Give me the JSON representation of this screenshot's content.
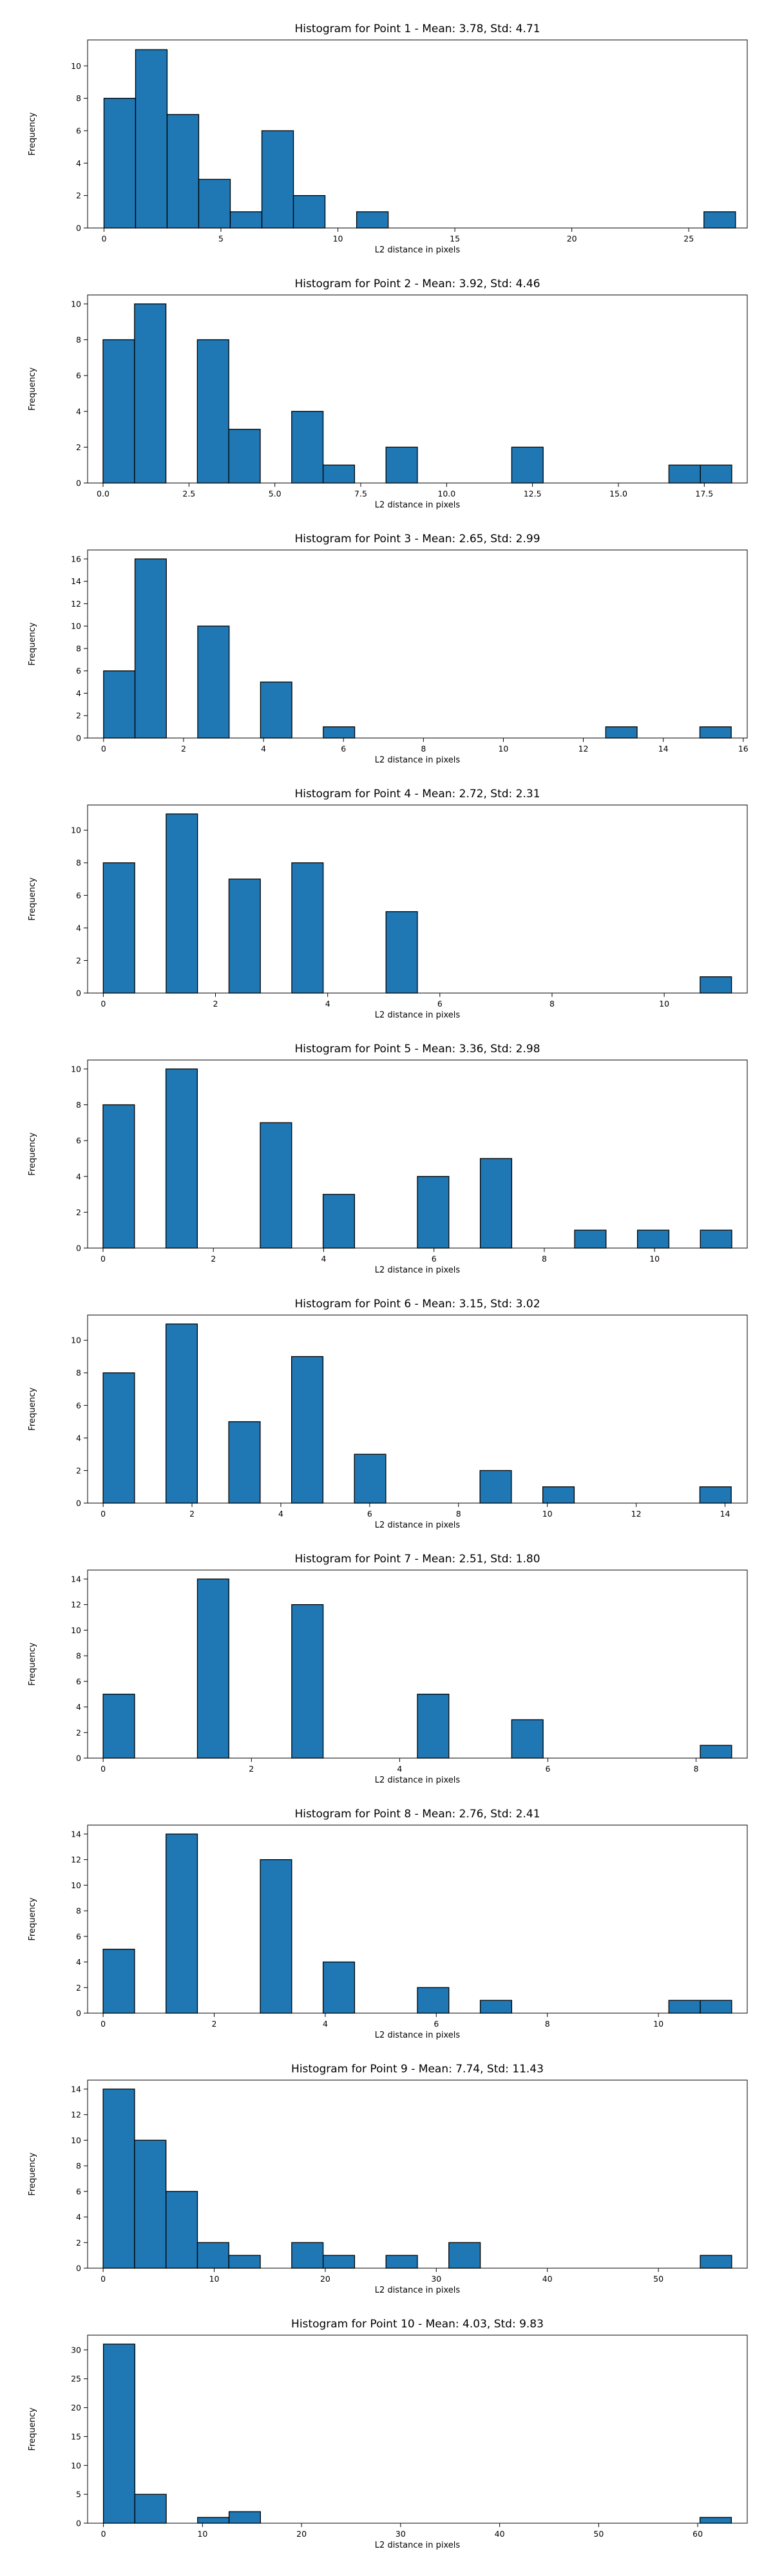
{
  "chart_data": [
    {
      "type": "bar",
      "title": "Histogram for Point 1 - Mean: 3.78, Std: 4.71",
      "xlabel": "L2 distance in pixels",
      "ylabel": "Frequency",
      "bin_start": 0,
      "bin_width": 1.35,
      "counts": [
        8,
        11,
        7,
        3,
        1,
        6,
        2,
        0,
        1,
        0,
        0,
        0,
        0,
        0,
        0,
        0,
        0,
        0,
        0,
        1
      ],
      "xlim": [
        -0.7,
        27.5
      ],
      "ylim": [
        0,
        11.6
      ],
      "xticks": [
        0,
        5,
        10,
        15,
        20,
        25
      ],
      "xtick_labels": [
        "0",
        "5",
        "10",
        "15",
        "20",
        "25"
      ],
      "yticks": [
        0,
        2,
        4,
        6,
        8,
        10
      ],
      "ytick_labels": [
        "0",
        "2",
        "4",
        "6",
        "8",
        "10"
      ],
      "bar_color": "#1f77b4",
      "edge_color": "#000000"
    },
    {
      "type": "bar",
      "title": "Histogram for Point 2 - Mean: 3.92, Std: 4.46",
      "xlabel": "L2 distance in pixels",
      "ylabel": "Frequency",
      "bin_start": 0,
      "bin_width": 0.915,
      "counts": [
        8,
        10,
        0,
        8,
        3,
        0,
        4,
        1,
        0,
        2,
        0,
        0,
        0,
        2,
        0,
        0,
        0,
        0,
        1,
        1
      ],
      "xlim": [
        -0.45,
        18.75
      ],
      "ylim": [
        0,
        10.5
      ],
      "xticks": [
        0,
        2.5,
        5,
        7.5,
        10,
        12.5,
        15,
        17.5
      ],
      "xtick_labels": [
        "0.0",
        "2.5",
        "5.0",
        "7.5",
        "10.0",
        "12.5",
        "15.0",
        "17.5"
      ],
      "yticks": [
        0,
        2,
        4,
        6,
        8,
        10
      ],
      "ytick_labels": [
        "0",
        "2",
        "4",
        "6",
        "8",
        "10"
      ],
      "bar_color": "#1f77b4",
      "edge_color": "#000000"
    },
    {
      "type": "bar",
      "title": "Histogram for Point 3 - Mean: 2.65, Std: 2.99",
      "xlabel": "L2 distance in pixels",
      "ylabel": "Frequency",
      "bin_start": 0,
      "bin_width": 0.785,
      "counts": [
        6,
        16,
        0,
        10,
        0,
        5,
        0,
        1,
        0,
        0,
        0,
        0,
        0,
        0,
        0,
        0,
        1,
        0,
        0,
        1
      ],
      "xlim": [
        -0.4,
        16.1
      ],
      "ylim": [
        0,
        16.8
      ],
      "xticks": [
        0,
        2,
        4,
        6,
        8,
        10,
        12,
        14,
        16
      ],
      "xtick_labels": [
        "0",
        "2",
        "4",
        "6",
        "8",
        "10",
        "12",
        "14",
        "16"
      ],
      "yticks": [
        0,
        2,
        4,
        6,
        8,
        10,
        12,
        14,
        16
      ],
      "ytick_labels": [
        "0",
        "2",
        "4",
        "6",
        "8",
        "10",
        "12",
        "14",
        "16"
      ],
      "bar_color": "#1f77b4",
      "edge_color": "#000000"
    },
    {
      "type": "bar",
      "title": "Histogram for Point 4 - Mean: 2.72, Std: 2.31",
      "xlabel": "L2 distance in pixels",
      "ylabel": "Frequency",
      "bin_start": 0,
      "bin_width": 0.56,
      "counts": [
        8,
        0,
        11,
        0,
        7,
        0,
        8,
        0,
        0,
        5,
        0,
        0,
        0,
        0,
        0,
        0,
        0,
        0,
        0,
        1
      ],
      "xlim": [
        -0.28,
        11.48
      ],
      "ylim": [
        0,
        11.55
      ],
      "xticks": [
        0,
        2,
        4,
        6,
        8,
        10
      ],
      "xtick_labels": [
        "0",
        "2",
        "4",
        "6",
        "8",
        "10"
      ],
      "yticks": [
        0,
        2,
        4,
        6,
        8,
        10
      ],
      "ytick_labels": [
        "0",
        "2",
        "4",
        "6",
        "8",
        "10"
      ],
      "bar_color": "#1f77b4",
      "edge_color": "#000000"
    },
    {
      "type": "bar",
      "title": "Histogram for Point 5 - Mean: 3.36, Std: 2.98",
      "xlabel": "L2 distance in pixels",
      "ylabel": "Frequency",
      "bin_start": 0,
      "bin_width": 0.57,
      "counts": [
        8,
        0,
        10,
        0,
        0,
        7,
        0,
        3,
        0,
        0,
        4,
        0,
        5,
        0,
        0,
        1,
        0,
        1,
        0,
        1
      ],
      "xlim": [
        -0.28,
        11.68
      ],
      "ylim": [
        0,
        10.5
      ],
      "xticks": [
        0,
        2,
        4,
        6,
        8,
        10
      ],
      "xtick_labels": [
        "0",
        "2",
        "4",
        "6",
        "8",
        "10"
      ],
      "yticks": [
        0,
        2,
        4,
        6,
        8,
        10
      ],
      "ytick_labels": [
        "0",
        "2",
        "4",
        "6",
        "8",
        "10"
      ],
      "bar_color": "#1f77b4",
      "edge_color": "#000000"
    },
    {
      "type": "bar",
      "title": "Histogram for Point 6 - Mean: 3.15, Std: 3.02",
      "xlabel": "L2 distance in pixels",
      "ylabel": "Frequency",
      "bin_start": 0,
      "bin_width": 0.707,
      "counts": [
        8,
        0,
        11,
        0,
        5,
        0,
        9,
        0,
        3,
        0,
        0,
        0,
        2,
        0,
        1,
        0,
        0,
        0,
        0,
        1
      ],
      "xlim": [
        -0.35,
        14.5
      ],
      "ylim": [
        0,
        11.55
      ],
      "xticks": [
        0,
        2,
        4,
        6,
        8,
        10,
        12,
        14
      ],
      "xtick_labels": [
        "0",
        "2",
        "4",
        "6",
        "8",
        "10",
        "12",
        "14"
      ],
      "yticks": [
        0,
        2,
        4,
        6,
        8,
        10
      ],
      "ytick_labels": [
        "0",
        "2",
        "4",
        "6",
        "8",
        "10"
      ],
      "bar_color": "#1f77b4",
      "edge_color": "#000000"
    },
    {
      "type": "bar",
      "title": "Histogram for Point 7 - Mean: 2.51, Std: 1.80",
      "xlabel": "L2 distance in pixels",
      "ylabel": "Frequency",
      "bin_start": 0,
      "bin_width": 0.424,
      "counts": [
        5,
        0,
        0,
        14,
        0,
        0,
        12,
        0,
        0,
        0,
        5,
        0,
        0,
        3,
        0,
        0,
        0,
        0,
        0,
        1
      ],
      "xlim": [
        -0.21,
        8.69
      ],
      "ylim": [
        0,
        14.7
      ],
      "xticks": [
        0,
        2,
        4,
        6,
        8
      ],
      "xtick_labels": [
        "0",
        "2",
        "4",
        "6",
        "8"
      ],
      "yticks": [
        0,
        2,
        4,
        6,
        8,
        10,
        12,
        14
      ],
      "ytick_labels": [
        "0",
        "2",
        "4",
        "6",
        "8",
        "10",
        "12",
        "14"
      ],
      "bar_color": "#1f77b4",
      "edge_color": "#000000"
    },
    {
      "type": "bar",
      "title": "Histogram for Point 8 - Mean: 2.76, Std: 2.41",
      "xlabel": "L2 distance in pixels",
      "ylabel": "Frequency",
      "bin_start": 0,
      "bin_width": 0.566,
      "counts": [
        5,
        0,
        14,
        0,
        0,
        12,
        0,
        4,
        0,
        0,
        2,
        0,
        1,
        0,
        0,
        0,
        0,
        0,
        1,
        1
      ],
      "xlim": [
        -0.28,
        11.6
      ],
      "ylim": [
        0,
        14.7
      ],
      "xticks": [
        0,
        2,
        4,
        6,
        8,
        10
      ],
      "xtick_labels": [
        "0",
        "2",
        "4",
        "6",
        "8",
        "10"
      ],
      "yticks": [
        0,
        2,
        4,
        6,
        8,
        10,
        12,
        14
      ],
      "ytick_labels": [
        "0",
        "2",
        "4",
        "6",
        "8",
        "10",
        "12",
        "14"
      ],
      "bar_color": "#1f77b4",
      "edge_color": "#000000"
    },
    {
      "type": "bar",
      "title": "Histogram for Point 9 - Mean: 7.74, Std: 11.43",
      "xlabel": "L2 distance in pixels",
      "ylabel": "Frequency",
      "bin_start": 0,
      "bin_width": 2.83,
      "counts": [
        14,
        10,
        6,
        2,
        1,
        0,
        2,
        1,
        0,
        1,
        0,
        2,
        0,
        0,
        0,
        0,
        0,
        0,
        0,
        1
      ],
      "xlim": [
        -1.4,
        58.0
      ],
      "ylim": [
        0,
        14.7
      ],
      "xticks": [
        0,
        10,
        20,
        30,
        40,
        50
      ],
      "xtick_labels": [
        "0",
        "10",
        "20",
        "30",
        "40",
        "50"
      ],
      "yticks": [
        0,
        2,
        4,
        6,
        8,
        10,
        12,
        14
      ],
      "ytick_labels": [
        "0",
        "2",
        "4",
        "6",
        "8",
        "10",
        "12",
        "14"
      ],
      "bar_color": "#1f77b4",
      "edge_color": "#000000"
    },
    {
      "type": "bar",
      "title": "Histogram for Point 10 - Mean: 4.03, Std: 9.83",
      "xlabel": "L2 distance in pixels",
      "ylabel": "Frequency",
      "bin_start": 0,
      "bin_width": 3.17,
      "counts": [
        31,
        5,
        0,
        1,
        2,
        0,
        0,
        0,
        0,
        0,
        0,
        0,
        0,
        0,
        0,
        0,
        0,
        0,
        0,
        1
      ],
      "xlim": [
        -1.6,
        65.0
      ],
      "ylim": [
        0,
        32.55
      ],
      "xticks": [
        0,
        10,
        20,
        30,
        40,
        50,
        60
      ],
      "xtick_labels": [
        "0",
        "10",
        "20",
        "30",
        "40",
        "50",
        "60"
      ],
      "yticks": [
        0,
        5,
        10,
        15,
        20,
        25,
        30
      ],
      "ytick_labels": [
        "0",
        "5",
        "10",
        "15",
        "20",
        "25",
        "30"
      ],
      "bar_color": "#1f77b4",
      "edge_color": "#000000"
    }
  ]
}
